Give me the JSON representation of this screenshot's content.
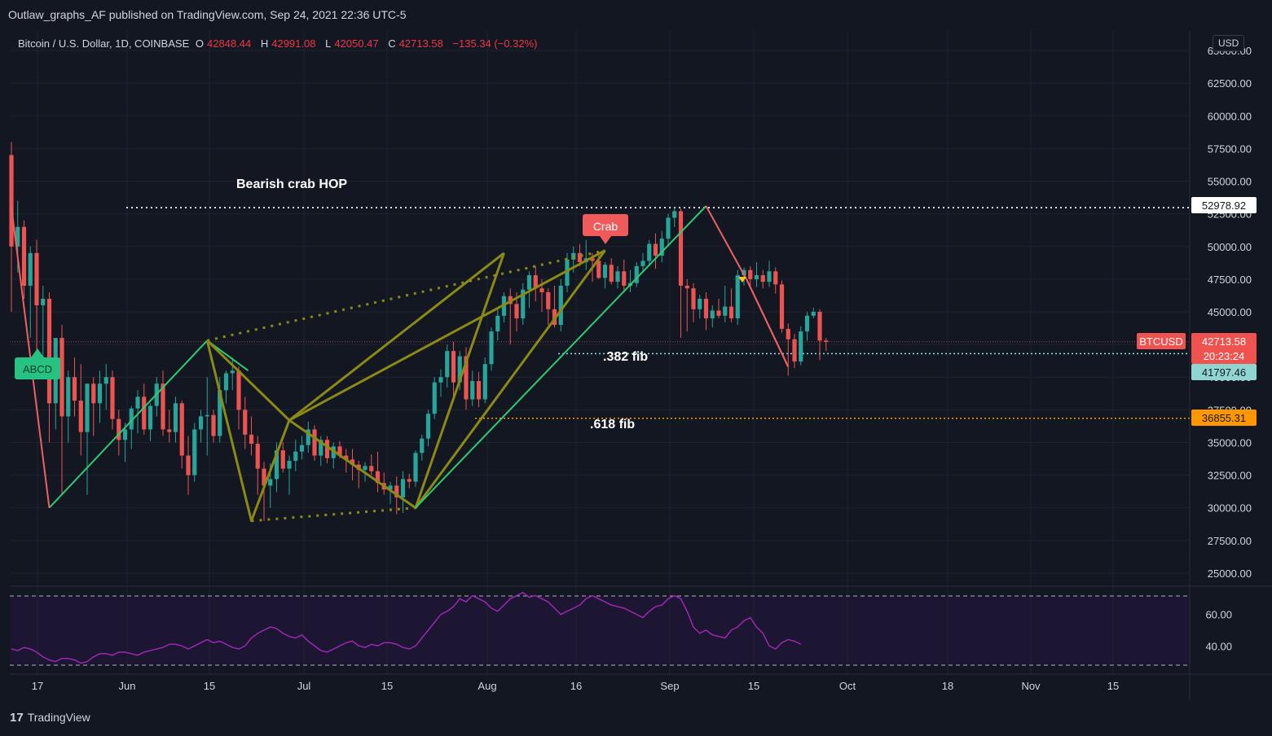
{
  "header": {
    "published_by": "Outlaw_graphs_AF published on TradingView.com, Sep 24, 2021 22:36 UTC-5"
  },
  "legend": {
    "title": "Bitcoin / U.S. Dollar, 1D, COINBASE",
    "o_label": "O",
    "o_value": "42848.44",
    "h_label": "H",
    "h_value": "42991.08",
    "l_label": "L",
    "l_value": "42050.47",
    "c_label": "C",
    "c_value": "42713.58",
    "change": "−135.34 (−0.32%)"
  },
  "currency_button": "USD",
  "footer": {
    "brand": "TradingView"
  },
  "annotations": {
    "title": "Bearish crab HOP",
    "fib382": ".382 fib",
    "fib618": ".618 fib",
    "crab_badge": "Crab",
    "abcd_badge": "ABCD"
  },
  "price_tags": {
    "hop_level": "52978.92",
    "symbol": "BTCUSD",
    "last_price": "42713.58",
    "countdown": "20:23:24",
    "fib382_level": "41797.46",
    "fib618_level": "36855.31"
  },
  "colors": {
    "background": "#131722",
    "up": "#26a69a",
    "down": "#ef5350",
    "pattern_green": "#2ecc71",
    "pattern_olive": "#8a8a14",
    "pattern_red": "#f06060",
    "fib618": "#ff9800",
    "rsi": "#9c27b0"
  },
  "chart_data": {
    "type": "candlestick",
    "symbol": "BTCUSD",
    "interval": "1D",
    "y_axis": {
      "range": [
        24000,
        66500
      ],
      "tick_labels": [
        "25000.00",
        "27500.00",
        "30000.00",
        "32500.00",
        "35000.00",
        "37500.00",
        "40000.00",
        "42500.00",
        "45000.00",
        "47500.00",
        "50000.00",
        "52500.00",
        "55000.00",
        "57500.00",
        "60000.00",
        "62500.00",
        "65000.00"
      ]
    },
    "x_axis": {
      "tick_labels": [
        "17",
        "Jun",
        "15",
        "Jul",
        "15",
        "Aug",
        "16",
        "Sep",
        "15",
        "Oct",
        "18",
        "Nov",
        "15"
      ]
    },
    "levels": {
      "hop": 52978.92,
      "fib382": 41797.46,
      "fib618": 36855.31,
      "last": 42713.58
    },
    "candles_ohlc": [
      [
        57000,
        58000,
        45000,
        50000
      ],
      [
        50000,
        53500,
        48000,
        51500
      ],
      [
        51500,
        52000,
        46000,
        47000
      ],
      [
        47000,
        50000,
        43000,
        49500
      ],
      [
        49500,
        50500,
        42000,
        45500
      ],
      [
        45500,
        47000,
        40000,
        46000
      ],
      [
        46000,
        46500,
        35000,
        38000
      ],
      [
        38000,
        40000,
        36000,
        43000
      ],
      [
        43000,
        44000,
        31000,
        37000
      ],
      [
        37000,
        40500,
        35000,
        40000
      ],
      [
        40000,
        41500,
        37000,
        38200
      ],
      [
        38200,
        41000,
        34000,
        35800
      ],
      [
        35800,
        39000,
        31000,
        39500
      ],
      [
        39500,
        40000,
        35500,
        38000
      ],
      [
        38000,
        40500,
        36500,
        39500
      ],
      [
        39500,
        41000,
        37500,
        40000
      ],
      [
        40000,
        40500,
        36000,
        36800
      ],
      [
        36800,
        37500,
        34000,
        35200
      ],
      [
        35200,
        36500,
        33500,
        36000
      ],
      [
        36000,
        37800,
        34500,
        37600
      ],
      [
        37600,
        39000,
        35700,
        38500
      ],
      [
        38500,
        39500,
        35600,
        36000
      ],
      [
        36000,
        38000,
        35100,
        37800
      ],
      [
        37800,
        40000,
        37000,
        39500
      ],
      [
        39500,
        40500,
        35500,
        36000
      ],
      [
        36000,
        37500,
        35000,
        35800
      ],
      [
        35800,
        38500,
        35000,
        38000
      ],
      [
        38000,
        38200,
        33000,
        34000
      ],
      [
        34000,
        35500,
        31000,
        32500
      ],
      [
        32500,
        36500,
        32000,
        36000
      ],
      [
        36000,
        37500,
        35000,
        37000
      ],
      [
        37000,
        40000,
        34000,
        37100
      ],
      [
        37100,
        37500,
        35000,
        35500
      ],
      [
        35500,
        40000,
        35000,
        39000
      ],
      [
        39000,
        40500,
        38000,
        40300
      ],
      [
        40300,
        41500,
        39000,
        40500
      ],
      [
        40500,
        40800,
        36000,
        37500
      ],
      [
        37500,
        38500,
        34500,
        35600
      ],
      [
        35600,
        37000,
        34000,
        34900
      ],
      [
        34900,
        35500,
        31000,
        33000
      ],
      [
        33000,
        33500,
        29000,
        31700
      ],
      [
        31700,
        33400,
        30000,
        32200
      ],
      [
        32200,
        35000,
        31200,
        34400
      ],
      [
        34400,
        35000,
        32700,
        33000
      ],
      [
        33000,
        34000,
        31000,
        33600
      ],
      [
        33600,
        35200,
        32800,
        34300
      ],
      [
        34300,
        35500,
        33700,
        34800
      ],
      [
        34800,
        36600,
        34200,
        36000
      ],
      [
        36000,
        36300,
        33600,
        34000
      ],
      [
        34000,
        35500,
        33200,
        35200
      ],
      [
        35200,
        35500,
        33400,
        33800
      ],
      [
        33800,
        35000,
        33000,
        34700
      ],
      [
        34700,
        35100,
        33800,
        34000
      ],
      [
        34000,
        34500,
        32700,
        33700
      ],
      [
        33700,
        34500,
        32100,
        33300
      ],
      [
        33300,
        33600,
        31500,
        32900
      ],
      [
        32900,
        33500,
        32000,
        33200
      ],
      [
        33200,
        34100,
        32500,
        32800
      ],
      [
        32800,
        34300,
        31200,
        31900
      ],
      [
        31900,
        32700,
        31000,
        31400
      ],
      [
        31400,
        32000,
        30300,
        31700
      ],
      [
        31700,
        32400,
        29500,
        30800
      ],
      [
        30800,
        32800,
        29600,
        32200
      ],
      [
        32200,
        32600,
        31500,
        32000
      ],
      [
        32000,
        34400,
        31600,
        34200
      ],
      [
        34200,
        35600,
        33600,
        35300
      ],
      [
        35300,
        37500,
        34700,
        37200
      ],
      [
        37200,
        40000,
        36800,
        39600
      ],
      [
        39600,
        40600,
        38500,
        40000
      ],
      [
        40000,
        42500,
        39200,
        42000
      ],
      [
        42000,
        42700,
        38500,
        39600
      ],
      [
        39600,
        42000,
        39000,
        41600
      ],
      [
        41600,
        42300,
        37500,
        38300
      ],
      [
        38300,
        40500,
        37800,
        39700
      ],
      [
        39700,
        40400,
        37700,
        38300
      ],
      [
        38300,
        41500,
        38000,
        41000
      ],
      [
        41000,
        43800,
        40500,
        43500
      ],
      [
        43500,
        45300,
        42800,
        44700
      ],
      [
        44700,
        46500,
        44200,
        46200
      ],
      [
        46200,
        46800,
        42500,
        45600
      ],
      [
        45600,
        46500,
        43500,
        44500
      ],
      [
        44500,
        47200,
        44000,
        46700
      ],
      [
        46700,
        48100,
        45300,
        47800
      ],
      [
        47800,
        48500,
        45800,
        46800
      ],
      [
        46800,
        47500,
        45000,
        46500
      ],
      [
        46500,
        46800,
        44000,
        45200
      ],
      [
        45200,
        47000,
        43800,
        44000
      ],
      [
        44000,
        47500,
        43500,
        47000
      ],
      [
        47000,
        49500,
        46500,
        49000
      ],
      [
        49000,
        50000,
        48000,
        49500
      ],
      [
        49500,
        50200,
        48500,
        48800
      ],
      [
        48800,
        50500,
        48200,
        49100
      ],
      [
        49100,
        49500,
        47300,
        48900
      ],
      [
        48900,
        49500,
        47500,
        47600
      ],
      [
        47600,
        48800,
        46800,
        48600
      ],
      [
        48600,
        49100,
        47100,
        47300
      ],
      [
        47300,
        48500,
        46800,
        48100
      ],
      [
        48100,
        49000,
        46600,
        47000
      ],
      [
        47000,
        48200,
        46500,
        47200
      ],
      [
        47200,
        48800,
        46900,
        48500
      ],
      [
        48500,
        49500,
        48000,
        48900
      ],
      [
        48900,
        50500,
        48500,
        50200
      ],
      [
        50200,
        51000,
        48300,
        49300
      ],
      [
        49300,
        51200,
        48800,
        50600
      ],
      [
        50600,
        52500,
        50000,
        52200
      ],
      [
        52200,
        53000,
        51500,
        52700
      ],
      [
        52700,
        52900,
        43000,
        47000
      ],
      [
        47000,
        47500,
        43500,
        46800
      ],
      [
        46800,
        47200,
        44200,
        45200
      ],
      [
        45200,
        46300,
        44500,
        46000
      ],
      [
        46000,
        46500,
        43600,
        44500
      ],
      [
        44500,
        45500,
        43800,
        45100
      ],
      [
        45100,
        46000,
        44500,
        44700
      ],
      [
        44700,
        47000,
        44200,
        45400
      ],
      [
        45400,
        46800,
        44200,
        44500
      ],
      [
        44500,
        48200,
        44000,
        47800
      ],
      [
        47800,
        48400,
        47000,
        48200
      ],
      [
        48200,
        48500,
        46900,
        47500
      ],
      [
        47500,
        48800,
        46900,
        47800
      ],
      [
        47800,
        48200,
        46800,
        47300
      ],
      [
        47300,
        48900,
        46900,
        48100
      ],
      [
        48100,
        48400,
        46400,
        47100
      ],
      [
        47100,
        47400,
        43400,
        43700
      ],
      [
        43700,
        44100,
        40100,
        42900
      ],
      [
        42900,
        43300,
        40700,
        41200
      ],
      [
        41200,
        43900,
        40900,
        43500
      ],
      [
        43500,
        45000,
        42800,
        44700
      ],
      [
        44700,
        45300,
        44500,
        45000
      ],
      [
        45000,
        45200,
        41300,
        42800
      ],
      [
        42800,
        43000,
        42000,
        42700
      ]
    ],
    "rsi": {
      "levels": [
        70,
        30
      ],
      "tick_labels": [
        "60.00",
        "40.00"
      ],
      "values": [
        38,
        37,
        39,
        38,
        36,
        33,
        31,
        30,
        32,
        32,
        31,
        29,
        30,
        33,
        35,
        35,
        34,
        36,
        36,
        35,
        34,
        36,
        37,
        38,
        39,
        41,
        41,
        40,
        38,
        40,
        42,
        44,
        42,
        43,
        41,
        39,
        38,
        40,
        45,
        48,
        50,
        52,
        51,
        48,
        46,
        45,
        47,
        43,
        40,
        37,
        36,
        38,
        40,
        42,
        43,
        40,
        39,
        41,
        40,
        42,
        42,
        41,
        39,
        38,
        40,
        45,
        50,
        55,
        60,
        62,
        65,
        70,
        68,
        72,
        70,
        68,
        64,
        62,
        66,
        70,
        72,
        74,
        71,
        72,
        70,
        68,
        64,
        60,
        62,
        64,
        66,
        70,
        72,
        70,
        68,
        66,
        65,
        64,
        62,
        60,
        58,
        62,
        65,
        66,
        70,
        72,
        70,
        62,
        52,
        48,
        50,
        47,
        46,
        45,
        50,
        52,
        56,
        58,
        52,
        48,
        40,
        38,
        42,
        44,
        43,
        41
      ]
    },
    "patterns": {
      "abcd_green": [
        [
          0,
          29800
        ],
        [
          12,
          42800
        ],
        [
          14,
          42500
        ],
        [
          30,
          36600
        ],
        [
          45,
          30300
        ],
        [
          54,
          49300
        ]
      ],
      "crab_olive": [
        [
          14,
          42500
        ],
        [
          18,
          29300
        ],
        [
          21,
          36400
        ],
        [
          30,
          36500
        ],
        [
          45,
          30300
        ],
        [
          58,
          49900
        ]
      ],
      "crab_olive_dotted": [
        [
          14,
          42500
        ],
        [
          58,
          49900
        ],
        [
          18,
          29300
        ],
        [
          45,
          30300
        ]
      ],
      "red_drop": [
        [
          0,
          53000
        ],
        [
          5,
          30000
        ],
        [
          62,
          53200
        ],
        [
          69,
          45100
        ],
        [
          76,
          40800
        ]
      ],
      "green_tail": [
        [
          45,
          30300
        ],
        [
          62,
          53200
        ]
      ]
    }
  }
}
